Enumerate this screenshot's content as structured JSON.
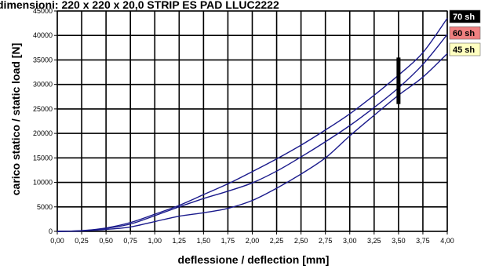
{
  "chart_data": {
    "type": "line",
    "title": "dimensioni: 220 x 220 x 20,0 STRIP ES PAD LLUC2222",
    "xlabel": "deflessione / deflection [mm]",
    "ylabel": "carico statico / static load [N]",
    "xlim": [
      0,
      4
    ],
    "ylim": [
      0,
      45000
    ],
    "x_ticks": [
      "0,00",
      "0,25",
      "0,50",
      "0,75",
      "1,00",
      "1,25",
      "1,50",
      "1,75",
      "2,00",
      "2,25",
      "2,50",
      "2,75",
      "3,00",
      "3,25",
      "3,50",
      "3,75",
      "4,00"
    ],
    "y_ticks": [
      "0",
      "5000",
      "10000",
      "15000",
      "20000",
      "25000",
      "30000",
      "35000",
      "40000",
      "45000"
    ],
    "grid": true,
    "legend_position": "right",
    "marker": {
      "x": 3.5,
      "y_min": 26000,
      "y_max": 35500
    },
    "series": [
      {
        "name": "70 sh",
        "color": "#000000",
        "text_color": "#ffffff",
        "x": [
          0,
          0.25,
          0.5,
          0.75,
          1.0,
          1.25,
          1.5,
          1.75,
          2.0,
          2.25,
          2.5,
          2.75,
          3.0,
          3.25,
          3.5,
          3.75,
          4.0
        ],
        "y": [
          0,
          150,
          700,
          1800,
          3500,
          5300,
          7500,
          9700,
          12200,
          14800,
          17600,
          20700,
          24000,
          27800,
          31900,
          36500,
          43500
        ]
      },
      {
        "name": "60 sh",
        "color": "#f08080",
        "text_color": "#000000",
        "x": [
          0,
          0.25,
          0.5,
          0.75,
          1.0,
          1.25,
          1.5,
          1.75,
          2.0,
          2.25,
          2.5,
          2.75,
          3.0,
          3.25,
          3.5,
          3.75,
          4.0
        ],
        "y": [
          0,
          130,
          600,
          1500,
          3200,
          5000,
          6700,
          8200,
          9900,
          12300,
          15200,
          18300,
          21600,
          25300,
          29300,
          34100,
          40200
        ]
      },
      {
        "name": "45 sh",
        "color": "#ffffc0",
        "text_color": "#000000",
        "x": [
          0,
          0.25,
          0.5,
          0.75,
          1.0,
          1.25,
          1.5,
          1.75,
          2.0,
          2.25,
          2.5,
          2.75,
          3.0,
          3.25,
          3.5,
          3.75,
          4.0
        ],
        "y": [
          0,
          100,
          400,
          900,
          2000,
          3100,
          3800,
          4700,
          6300,
          8800,
          11700,
          15000,
          19500,
          23700,
          27800,
          31500,
          36300
        ]
      }
    ]
  }
}
